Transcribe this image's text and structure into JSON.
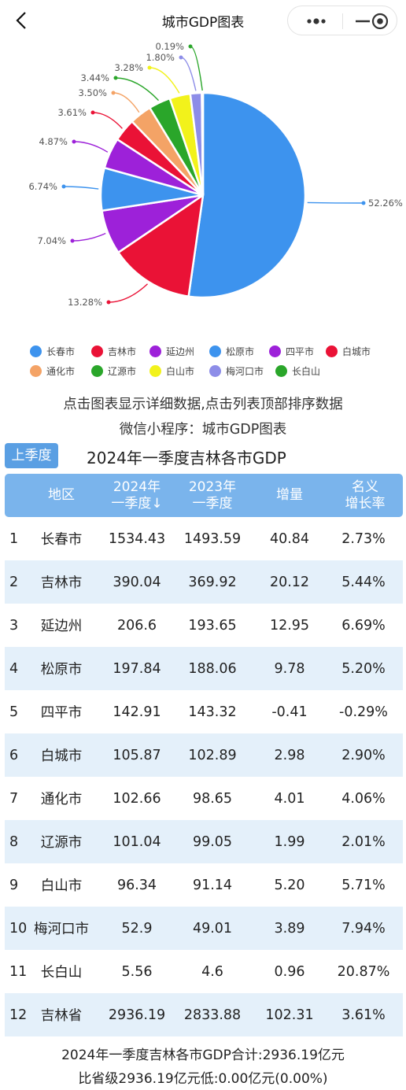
{
  "nav": {
    "title": "城市GDP图表"
  },
  "chart_data": {
    "type": "pie",
    "title": "",
    "slices": [
      {
        "name": "长春市",
        "value": 52.26,
        "label": "52.26%",
        "color": "#3d93ee"
      },
      {
        "name": "吉林市",
        "value": 13.28,
        "label": "13.28%",
        "color": "#ea1236"
      },
      {
        "name": "延边州",
        "value": 7.04,
        "label": "7.04%",
        "color": "#9d21d9"
      },
      {
        "name": "松原市",
        "value": 6.74,
        "label": "6.74%",
        "color": "#3d93ee"
      },
      {
        "name": "四平市",
        "value": 4.87,
        "label": "4.87%",
        "color": "#9d21d9"
      },
      {
        "name": "白城市",
        "value": 3.61,
        "label": "3.61%",
        "color": "#ea1236"
      },
      {
        "name": "通化市",
        "value": 3.5,
        "label": "3.50%",
        "color": "#f4a366"
      },
      {
        "name": "辽源市",
        "value": 3.44,
        "label": "3.44%",
        "color": "#2aa62a"
      },
      {
        "name": "白山市",
        "value": 3.28,
        "label": "3.28%",
        "color": "#f2f21b"
      },
      {
        "name": "梅河口市",
        "value": 1.8,
        "label": "1.80%",
        "color": "#8d8de8"
      },
      {
        "name": "长白山",
        "value": 0.19,
        "label": "0.19%",
        "color": "#2aa62a"
      }
    ]
  },
  "hints": {
    "line1": "点击图表显示详细数据,点击列表顶部排序数据",
    "line2": "微信小程序：城市GDP图表"
  },
  "season_button": "上季度",
  "table": {
    "title": "2024年一季度吉林各市GDP",
    "headers": [
      {
        "l1": "地区",
        "l2": ""
      },
      {
        "l1": "2024年",
        "l2": "一季度↓"
      },
      {
        "l1": "2023年",
        "l2": "一季度"
      },
      {
        "l1": "增量",
        "l2": ""
      },
      {
        "l1": "名义",
        "l2": "增长率"
      }
    ],
    "rows": [
      {
        "rank": "1",
        "region": "长春市",
        "gdp2024": "1534.43",
        "gdp2023": "1493.59",
        "increase": "40.84",
        "growth": "2.73%"
      },
      {
        "rank": "2",
        "region": "吉林市",
        "gdp2024": "390.04",
        "gdp2023": "369.92",
        "increase": "20.12",
        "growth": "5.44%"
      },
      {
        "rank": "3",
        "region": "延边州",
        "gdp2024": "206.6",
        "gdp2023": "193.65",
        "increase": "12.95",
        "growth": "6.69%"
      },
      {
        "rank": "4",
        "region": "松原市",
        "gdp2024": "197.84",
        "gdp2023": "188.06",
        "increase": "9.78",
        "growth": "5.20%"
      },
      {
        "rank": "5",
        "region": "四平市",
        "gdp2024": "142.91",
        "gdp2023": "143.32",
        "increase": "-0.41",
        "growth": "-0.29%"
      },
      {
        "rank": "6",
        "region": "白城市",
        "gdp2024": "105.87",
        "gdp2023": "102.89",
        "increase": "2.98",
        "growth": "2.90%"
      },
      {
        "rank": "7",
        "region": "通化市",
        "gdp2024": "102.66",
        "gdp2023": "98.65",
        "increase": "4.01",
        "growth": "4.06%"
      },
      {
        "rank": "8",
        "region": "辽源市",
        "gdp2024": "101.04",
        "gdp2023": "99.05",
        "increase": "1.99",
        "growth": "2.01%"
      },
      {
        "rank": "9",
        "region": "白山市",
        "gdp2024": "96.34",
        "gdp2023": "91.14",
        "increase": "5.20",
        "growth": "5.71%"
      },
      {
        "rank": "10",
        "region": "梅河口市",
        "gdp2024": "52.9",
        "gdp2023": "49.01",
        "increase": "3.89",
        "growth": "7.94%"
      },
      {
        "rank": "11",
        "region": "长白山",
        "gdp2024": "5.56",
        "gdp2023": "4.6",
        "increase": "0.96",
        "growth": "20.87%"
      },
      {
        "rank": "12",
        "region": "吉林省",
        "gdp2024": "2936.19",
        "gdp2023": "2833.88",
        "increase": "102.31",
        "growth": "3.61%"
      }
    ]
  },
  "footer": {
    "line1": "2024年一季度吉林各市GDP合计:2936.19亿元",
    "line2": "比省级2936.19亿元低:0.00亿元(0.00%)"
  }
}
